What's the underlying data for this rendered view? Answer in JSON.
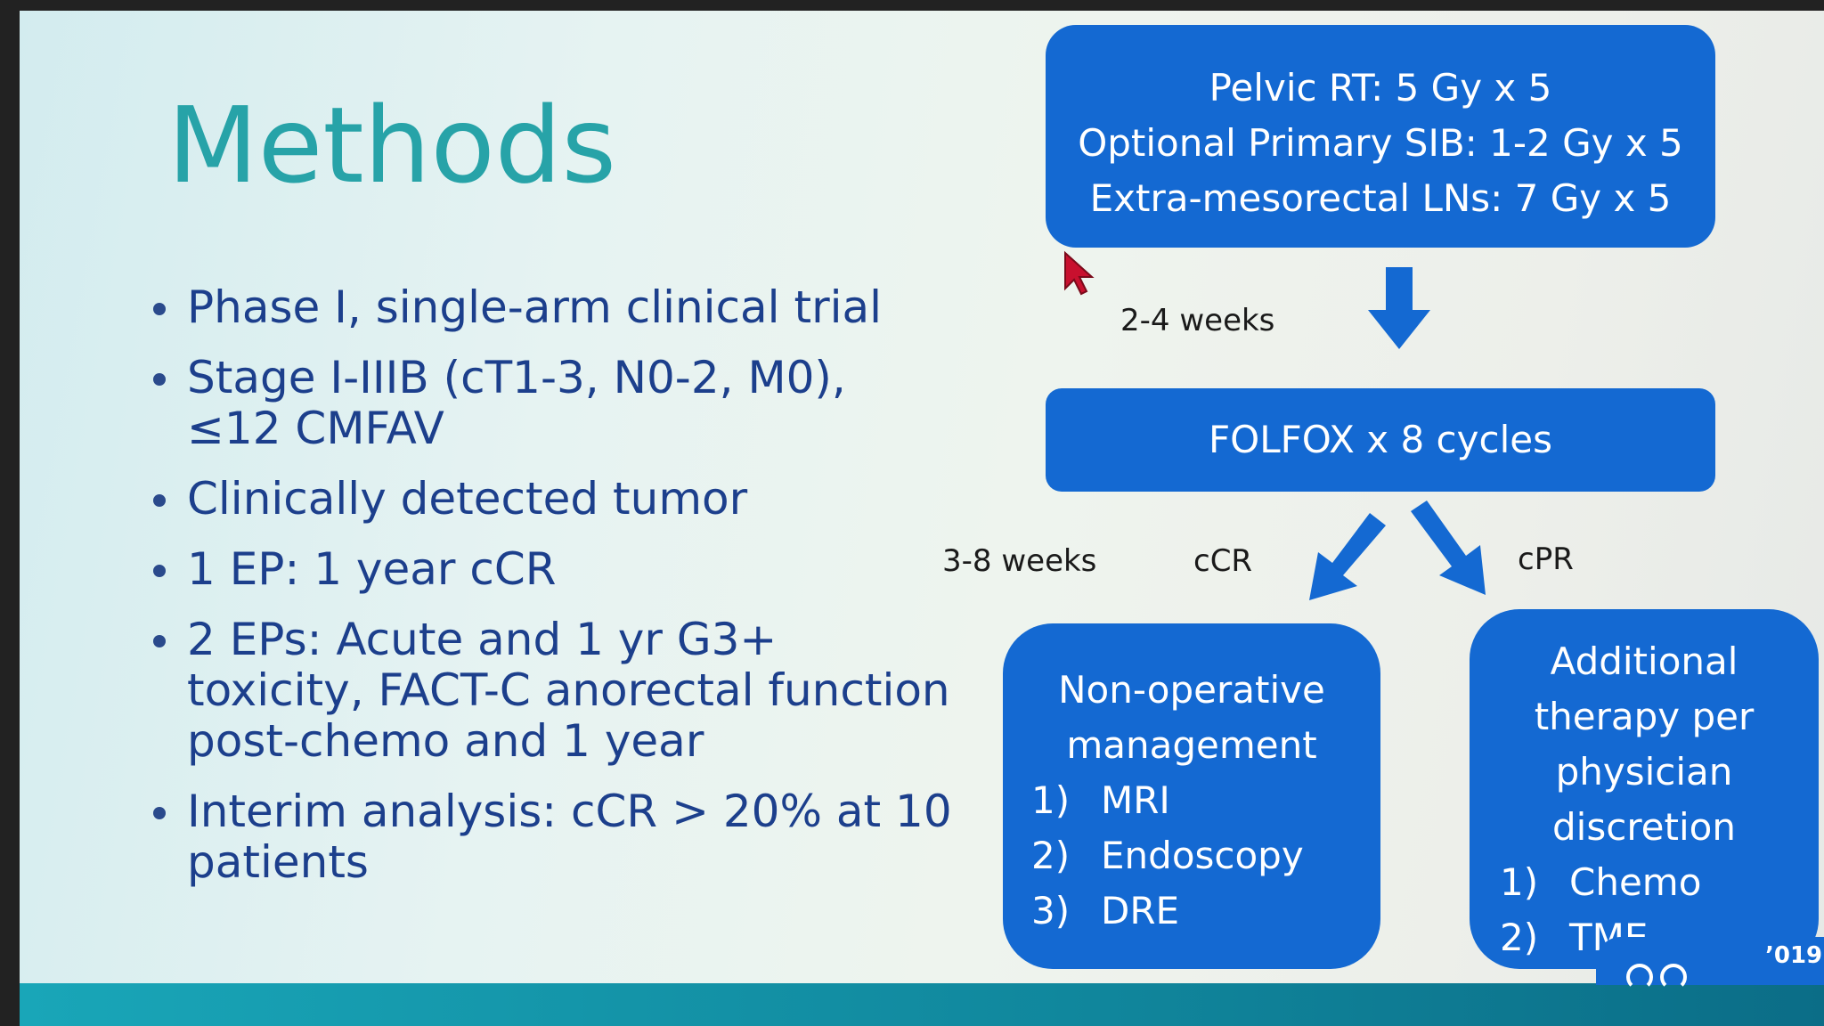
{
  "slide": {
    "title": "Methods",
    "bullets": [
      "Phase I, single-arm clinical trial",
      "Stage I-IIIB (cT1-3, N0-2, M0), ≤12 CMFAV",
      "Clinically detected tumor",
      "1 EP: 1 year cCR",
      "2 EPs: Acute and 1 yr G3+ toxicity, FACT-C anorectal function post-chemo and 1 year",
      "Interim analysis: cCR > 20% at 10 patients"
    ],
    "flow": {
      "rt_box": {
        "line1": "Pelvic RT: 5 Gy x 5",
        "line2": "Optional Primary SIB: 1-2 Gy x 5",
        "line3": "Extra-mesorectal LNs: 7 Gy x 5"
      },
      "interval1_label": "2-4 weeks",
      "chemo_box": "FOLFOX x 8 cycles",
      "interval2_label": "3-8 weeks",
      "ccr_label": "cCR",
      "cpr_label": "cPR",
      "nom_box": {
        "heading_line1": "Non-operative",
        "heading_line2": "management",
        "items": [
          {
            "num": "1)",
            "text": "MRI"
          },
          {
            "num": "2)",
            "text": "Endoscopy"
          },
          {
            "num": "3)",
            "text": "DRE"
          }
        ]
      },
      "additional_box": {
        "heading_line1": "Additional",
        "heading_line2": "therapy per",
        "heading_line3": "physician",
        "heading_line4": "discretion",
        "items": [
          {
            "num": "1)",
            "text": "Chemo"
          },
          {
            "num": "2)",
            "text": "TME"
          }
        ]
      }
    },
    "footer_fragment": "’019",
    "colors": {
      "title": "#27a3a8",
      "bullet_text": "#1c3f8c",
      "box_fill": "#1469d2",
      "arrow_fill": "#1469d2",
      "bottom_bar": "#10869c",
      "cursor": "#c8102e"
    }
  }
}
